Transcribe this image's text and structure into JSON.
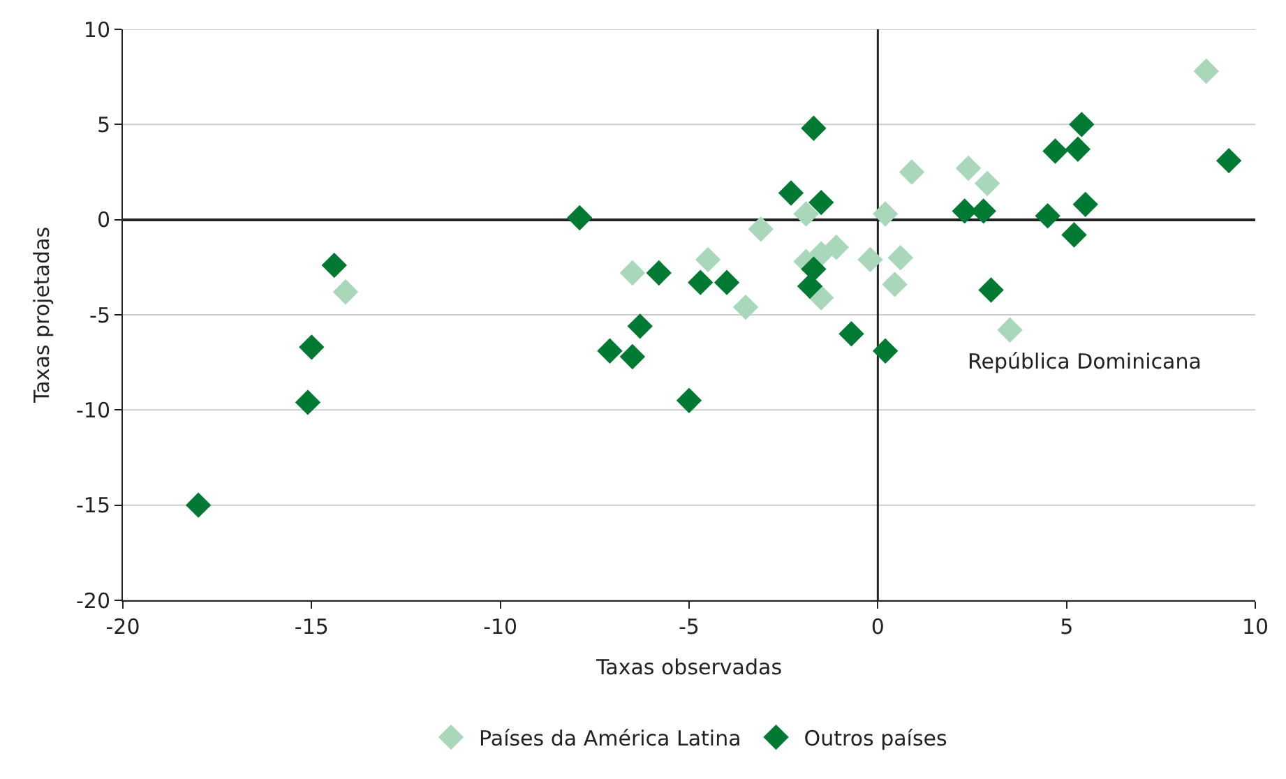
{
  "chart_data": {
    "type": "scatter",
    "xlabel": "Taxas observadas",
    "ylabel": "Taxas projetadas",
    "xlim": [
      -20,
      10
    ],
    "xticks": [
      -20,
      -15,
      -10,
      -5,
      0,
      5,
      10
    ],
    "ylim": [
      -20,
      10
    ],
    "yticks": [
      -20,
      -15,
      -10,
      -5,
      0,
      5,
      10
    ],
    "grid": "y",
    "legend": "bottom",
    "ref_lines": [
      {
        "axis": "x",
        "value": 0,
        "color": "#222222"
      }
    ],
    "marker": "diamond",
    "annotations": [
      {
        "text": "República Dominicana",
        "x": 3.5,
        "y": -5.8
      }
    ],
    "series": [
      {
        "name": "Países da América Latina",
        "color": "#a8d8b9",
        "x": [
          8.7,
          -6.5,
          -14.1,
          -4.5,
          -3.5,
          -3.1,
          -1.9,
          -1.9,
          -1.5,
          -1.1,
          -1.5,
          -0.2,
          0.2,
          0.45,
          0.6,
          0.9,
          2.4,
          2.9,
          3.5
        ],
        "values": [
          7.8,
          -2.8,
          -3.8,
          -2.1,
          -4.6,
          -0.5,
          0.3,
          -2.2,
          -1.8,
          -1.45,
          -4.1,
          -2.1,
          0.3,
          -3.4,
          -2.0,
          2.5,
          2.7,
          1.9,
          -5.8
        ]
      },
      {
        "name": "Outros países",
        "color": "#007a33",
        "x": [
          -18.0,
          -15.0,
          -15.1,
          -14.4,
          -7.9,
          -7.1,
          -6.5,
          -6.3,
          -5.8,
          -5.0,
          -4.7,
          -4.0,
          -2.3,
          -1.7,
          -1.5,
          -1.7,
          -1.8,
          -0.7,
          0.2,
          2.3,
          2.8,
          3.0,
          4.5,
          4.7,
          5.3,
          5.4,
          5.2,
          5.5,
          9.3
        ],
        "values": [
          -15.0,
          -6.7,
          -9.6,
          -2.4,
          0.1,
          -6.9,
          -7.2,
          -5.6,
          -2.8,
          -9.5,
          -3.3,
          -3.3,
          1.4,
          4.8,
          0.9,
          -2.6,
          -3.5,
          -6.0,
          -6.9,
          0.45,
          0.45,
          -3.7,
          0.2,
          3.6,
          3.7,
          5.0,
          -0.8,
          0.8,
          3.1
        ]
      }
    ]
  }
}
